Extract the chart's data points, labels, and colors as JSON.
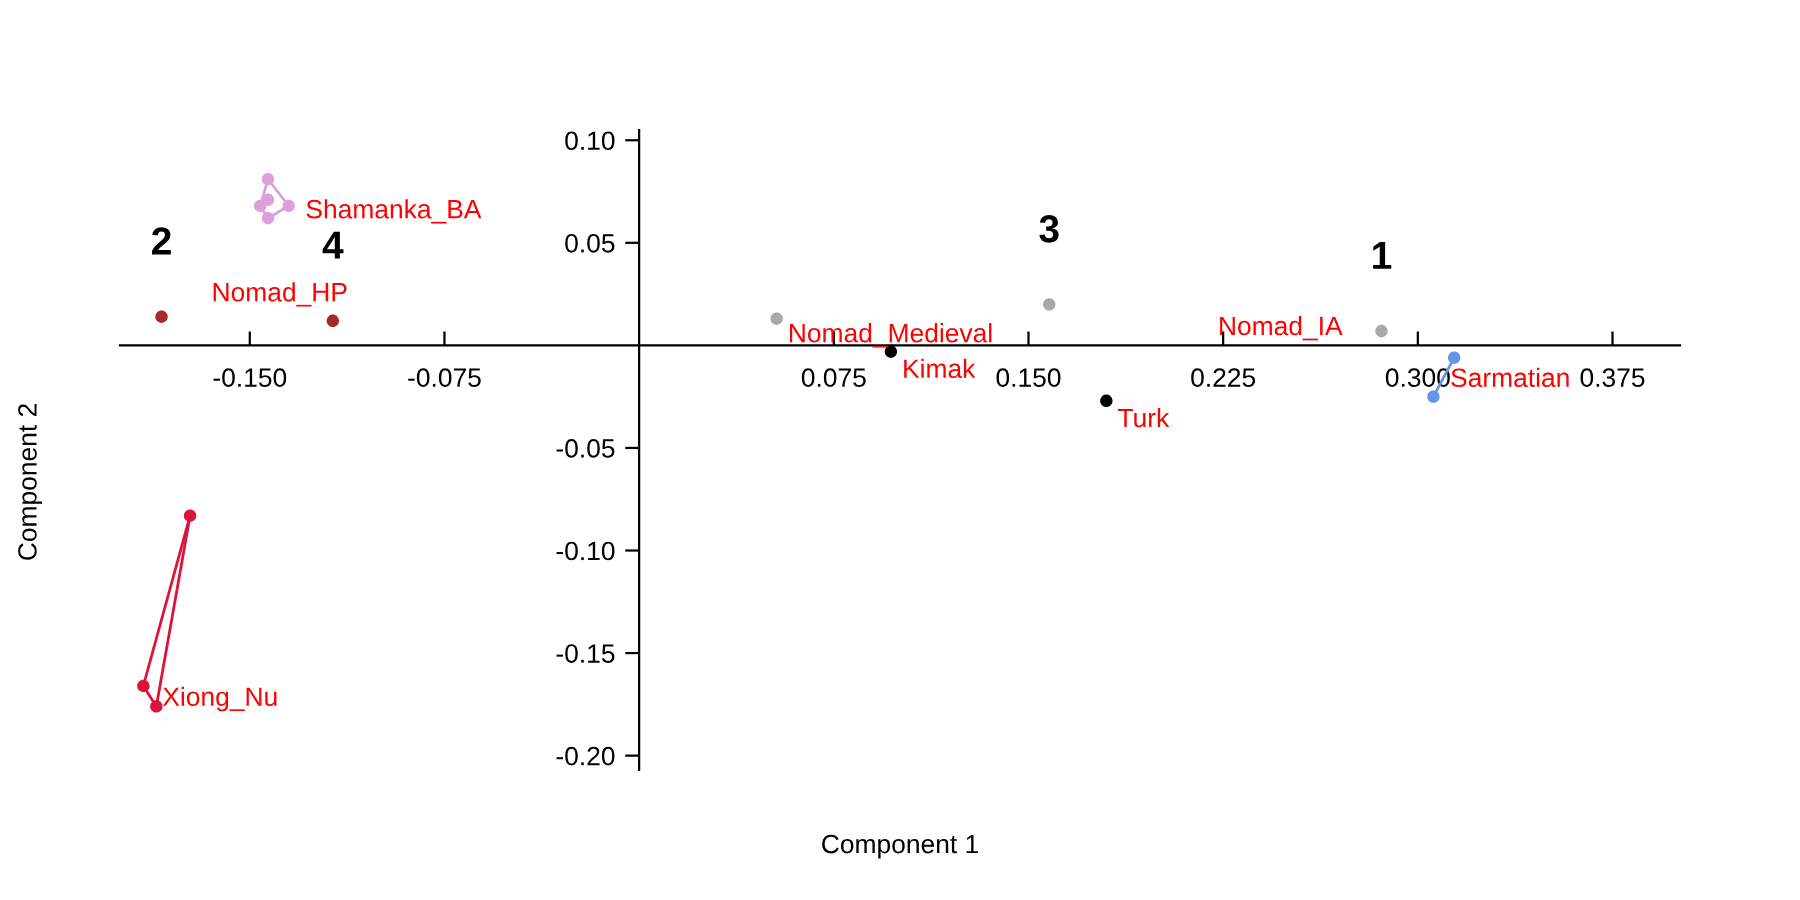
{
  "chart_data": {
    "type": "scatter",
    "xlabel": "Component 1",
    "ylabel": "Component 2",
    "xlim": [
      -0.2,
      0.401
    ],
    "ylim": [
      -0.207,
      0.105
    ],
    "xticks": [
      {
        "value": -0.15,
        "label": "-0.150"
      },
      {
        "value": -0.075,
        "label": "-0.075"
      },
      {
        "value": 0.075,
        "label": "0.075"
      },
      {
        "value": 0.15,
        "label": "0.150"
      },
      {
        "value": 0.225,
        "label": "0.225"
      },
      {
        "value": 0.3,
        "label": "0.300"
      },
      {
        "value": 0.375,
        "label": "0.375"
      }
    ],
    "yticks": [
      {
        "value": 0.1,
        "label": "0.10"
      },
      {
        "value": 0.05,
        "label": "0.05"
      },
      {
        "value": -0.05,
        "label": "-0.05"
      },
      {
        "value": -0.1,
        "label": "-0.10"
      },
      {
        "value": -0.15,
        "label": "-0.15"
      },
      {
        "value": -0.2,
        "label": "-0.20"
      }
    ],
    "grid": false,
    "legend": false,
    "marker": "circle",
    "series": [
      {
        "name": "Shamanka_BA",
        "color": "#dda0dd",
        "x": [
          -0.143,
          -0.135,
          -0.143,
          -0.146,
          -0.143
        ],
        "values": [
          0.081,
          0.068,
          0.062,
          0.068,
          0.071
        ]
      },
      {
        "type": "line",
        "marker": "none",
        "color": "#dda0dd",
        "x": [
          -0.146,
          -0.143,
          -0.135
        ],
        "values": [
          0.068,
          0.081,
          0.068
        ]
      },
      {
        "type": "line",
        "marker": "none",
        "color": "#dda0dd",
        "x": [
          -0.146,
          -0.143,
          -0.135
        ],
        "values": [
          0.068,
          0.062,
          0.068
        ]
      },
      {
        "name": "Nomad_HP",
        "color": "#a52a2a",
        "x": [
          -0.184,
          -0.118
        ],
        "values": [
          0.014,
          0.012
        ]
      },
      {
        "name": "Xiong_Nu",
        "color": "#dc143c",
        "x": [
          -0.173,
          -0.191,
          -0.186
        ],
        "values": [
          -0.083,
          -0.166,
          -0.176
        ]
      },
      {
        "type": "line",
        "marker": "none",
        "color": "#dc143c",
        "x": [
          -0.191,
          -0.173
        ],
        "values": [
          -0.166,
          -0.083
        ]
      },
      {
        "type": "line",
        "marker": "none",
        "color": "#dc143c",
        "x": [
          -0.191,
          -0.186,
          -0.173
        ],
        "values": [
          -0.166,
          -0.176,
          -0.083
        ]
      },
      {
        "name": "Nomad_Medieval",
        "color": "#a9a9a9",
        "x": [
          0.053
        ],
        "values": [
          0.013
        ]
      },
      {
        "name": "Kimak",
        "color": "#000000",
        "x": [
          0.097
        ],
        "values": [
          -0.003
        ]
      },
      {
        "color": "#a9a9a9",
        "x": [
          0.158
        ],
        "values": [
          0.02
        ]
      },
      {
        "name": "Turk",
        "color": "#000000",
        "x": [
          0.18
        ],
        "values": [
          -0.027
        ]
      },
      {
        "name": "Nomad_IA",
        "color": "#a9a9a9",
        "x": [
          0.286
        ],
        "values": [
          0.007
        ]
      },
      {
        "name": "Sarmatian",
        "type": "line",
        "color": "#6495ed",
        "x": [
          0.314,
          0.306
        ],
        "values": [
          -0.006,
          -0.025
        ]
      }
    ],
    "annotations": [
      {
        "text": "1",
        "x": 0.286,
        "y": 0.007
      },
      {
        "text": "2",
        "x": -0.184,
        "y": 0.014
      },
      {
        "text": "3",
        "x": 0.158,
        "y": 0.02
      },
      {
        "text": "4",
        "x": -0.118,
        "y": 0.012
      }
    ]
  }
}
